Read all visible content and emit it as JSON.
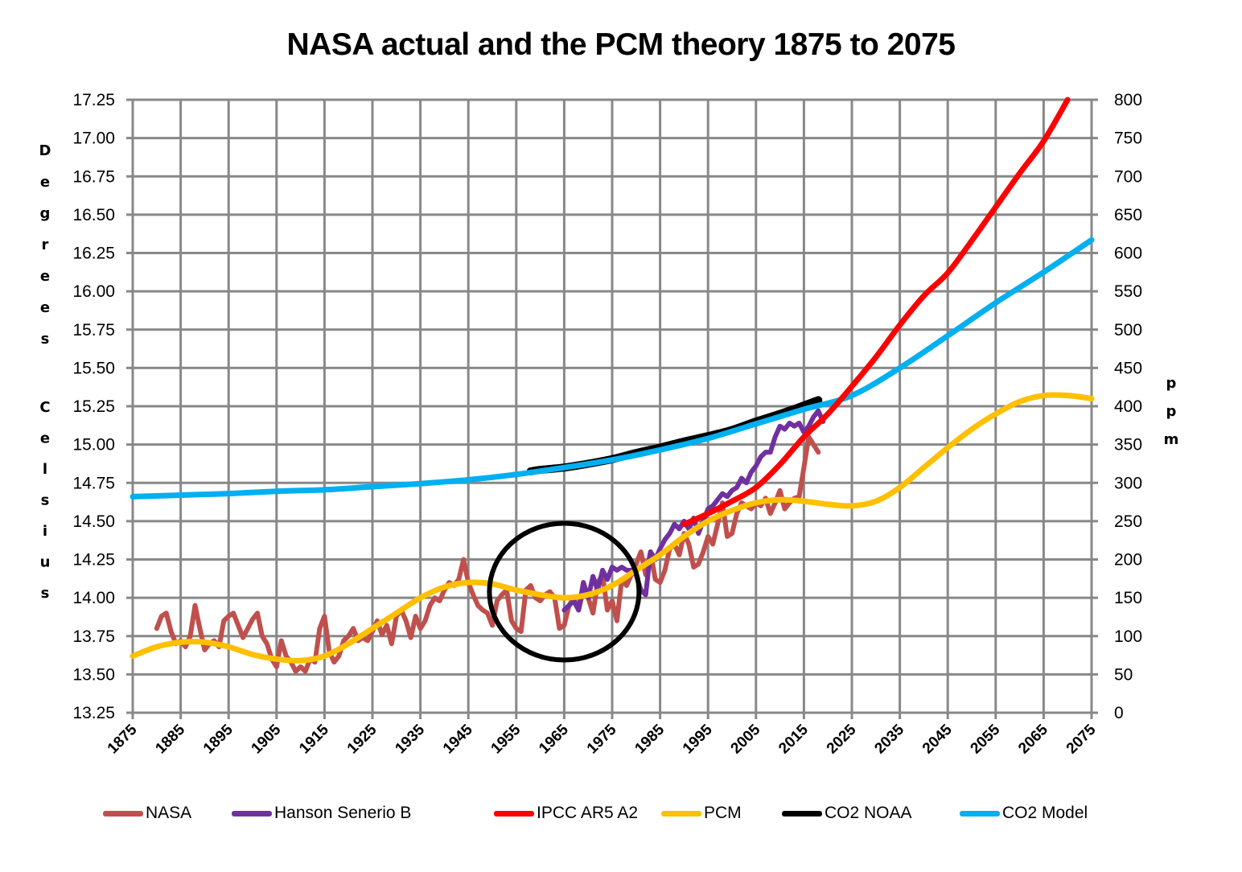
{
  "chart_data": {
    "type": "line",
    "title": "NASA actual and the PCM theory 1875 to 2075",
    "xlabel": "",
    "ylabel": "Degrees Celsius",
    "y2label": "ppm",
    "xlim": [
      1875,
      2075
    ],
    "ylim": [
      13.25,
      17.25
    ],
    "y2lim": [
      0,
      800
    ],
    "grid": true,
    "legend_position": "bottom",
    "x_ticks": [
      "1875",
      "1885",
      "1895",
      "1905",
      "1915",
      "1925",
      "1935",
      "1945",
      "1955",
      "1965",
      "1975",
      "1985",
      "1995",
      "2005",
      "2015",
      "2025",
      "2035",
      "2045",
      "2055",
      "2065",
      "2075"
    ],
    "y_ticks": [
      "13.25",
      "13.50",
      "13.75",
      "14.00",
      "14.25",
      "14.50",
      "14.75",
      "15.00",
      "15.25",
      "15.50",
      "15.75",
      "16.00",
      "16.25",
      "16.50",
      "16.75",
      "17.00",
      "17.25"
    ],
    "y2_ticks": [
      "0",
      "50",
      "100",
      "150",
      "200",
      "250",
      "300",
      "350",
      "400",
      "450",
      "500",
      "550",
      "600",
      "650",
      "700",
      "750",
      "800"
    ],
    "annotations": [
      {
        "type": "circle",
        "description": "highlight around 1965 dip",
        "center": [
          1965,
          14.04
        ],
        "radius_years": 8,
        "radius_deg": 0.46
      }
    ],
    "series": [
      {
        "name": "NASA",
        "axis": "left",
        "color": "#c0504d",
        "x": [
          1880,
          1881,
          1882,
          1883,
          1884,
          1885,
          1886,
          1887,
          1888,
          1889,
          1890,
          1891,
          1892,
          1893,
          1894,
          1895,
          1896,
          1897,
          1898,
          1899,
          1900,
          1901,
          1902,
          1903,
          1904,
          1905,
          1906,
          1907,
          1908,
          1909,
          1910,
          1911,
          1912,
          1913,
          1914,
          1915,
          1916,
          1917,
          1918,
          1919,
          1920,
          1921,
          1922,
          1923,
          1924,
          1925,
          1926,
          1927,
          1928,
          1929,
          1930,
          1931,
          1932,
          1933,
          1934,
          1935,
          1936,
          1937,
          1938,
          1939,
          1940,
          1941,
          1942,
          1943,
          1944,
          1945,
          1946,
          1947,
          1948,
          1949,
          1950,
          1951,
          1952,
          1953,
          1954,
          1955,
          1956,
          1957,
          1958,
          1959,
          1960,
          1961,
          1962,
          1963,
          1964,
          1965,
          1966,
          1967,
          1968,
          1969,
          1970,
          1971,
          1972,
          1973,
          1974,
          1975,
          1976,
          1977,
          1978,
          1979,
          1980,
          1981,
          1982,
          1983,
          1984,
          1985,
          1986,
          1987,
          1988,
          1989,
          1990,
          1991,
          1992,
          1993,
          1994,
          1995,
          1996,
          1997,
          1998,
          1999,
          2000,
          2001,
          2002,
          2003,
          2004,
          2005,
          2006,
          2007,
          2008,
          2009,
          2010,
          2011,
          2012,
          2013,
          2014,
          2015,
          2016,
          2017,
          2018
        ],
        "values": [
          13.8,
          13.88,
          13.9,
          13.78,
          13.7,
          13.72,
          13.68,
          13.75,
          13.95,
          13.8,
          13.66,
          13.7,
          13.72,
          13.68,
          13.85,
          13.88,
          13.9,
          13.82,
          13.74,
          13.8,
          13.86,
          13.9,
          13.75,
          13.7,
          13.6,
          13.55,
          13.72,
          13.62,
          13.58,
          13.52,
          13.55,
          13.52,
          13.6,
          13.58,
          13.8,
          13.88,
          13.65,
          13.58,
          13.62,
          13.72,
          13.75,
          13.8,
          13.72,
          13.74,
          13.72,
          13.78,
          13.85,
          13.76,
          13.82,
          13.7,
          13.88,
          13.92,
          13.85,
          13.74,
          13.88,
          13.8,
          13.85,
          13.95,
          14.0,
          13.98,
          14.05,
          14.1,
          14.08,
          14.12,
          14.25,
          14.1,
          14.02,
          13.95,
          13.92,
          13.9,
          13.82,
          13.98,
          14.02,
          14.05,
          13.85,
          13.8,
          13.78,
          14.05,
          14.08,
          14.0,
          13.98,
          14.02,
          14.04,
          14.0,
          13.8,
          13.82,
          13.95,
          14.0,
          13.92,
          14.05,
          14.0,
          13.9,
          14.1,
          14.15,
          13.92,
          13.98,
          13.85,
          14.12,
          14.08,
          14.15,
          14.22,
          14.3,
          14.15,
          14.3,
          14.12,
          14.1,
          14.18,
          14.32,
          14.35,
          14.28,
          14.42,
          14.35,
          14.2,
          14.22,
          14.3,
          14.4,
          14.35,
          14.48,
          14.62,
          14.4,
          14.42,
          14.55,
          14.62,
          14.6,
          14.58,
          14.62,
          14.6,
          14.65,
          14.55,
          14.62,
          14.7,
          14.58,
          14.62,
          14.65,
          14.66,
          14.85,
          15.05,
          15.0,
          14.95
        ]
      },
      {
        "name": "Hanson Senerio B",
        "axis": "left",
        "color": "#7030a0",
        "x": [
          1965,
          1966,
          1967,
          1968,
          1969,
          1970,
          1971,
          1972,
          1973,
          1974,
          1975,
          1976,
          1977,
          1978,
          1979,
          1980,
          1981,
          1982,
          1983,
          1984,
          1985,
          1986,
          1987,
          1988,
          1989,
          1990,
          1991,
          1992,
          1993,
          1994,
          1995,
          1996,
          1997,
          1998,
          1999,
          2000,
          2001,
          2002,
          2003,
          2004,
          2005,
          2006,
          2007,
          2008,
          2009,
          2010,
          2011,
          2012,
          2013,
          2014,
          2015,
          2016,
          2017,
          2018,
          2019
        ],
        "values": [
          13.92,
          13.95,
          13.98,
          13.92,
          14.1,
          14.0,
          14.14,
          14.05,
          14.18,
          14.12,
          14.2,
          14.18,
          14.2,
          14.18,
          14.18,
          14.15,
          14.05,
          14.02,
          14.3,
          14.25,
          14.32,
          14.38,
          14.42,
          14.48,
          14.45,
          14.5,
          14.45,
          14.52,
          14.42,
          14.5,
          14.58,
          14.6,
          14.64,
          14.68,
          14.66,
          14.7,
          14.72,
          14.78,
          14.75,
          14.82,
          14.86,
          14.92,
          14.95,
          14.95,
          15.05,
          15.12,
          15.1,
          15.14,
          15.12,
          15.14,
          15.08,
          15.12,
          15.18,
          15.22,
          15.15
        ]
      },
      {
        "name": "IPCC AR5 A2",
        "axis": "left",
        "color": "#ff0000",
        "x": [
          1990,
          1995,
          2000,
          2005,
          2010,
          2015,
          2020,
          2025,
          2030,
          2035,
          2040,
          2045,
          2050,
          2055,
          2060,
          2065,
          2070
        ],
        "values": [
          14.48,
          14.55,
          14.63,
          14.72,
          14.87,
          15.05,
          15.2,
          15.38,
          15.57,
          15.78,
          15.97,
          16.12,
          16.33,
          16.55,
          16.77,
          16.98,
          17.25
        ]
      },
      {
        "name": "PCM",
        "axis": "left",
        "color": "#ffc000",
        "x": [
          1875,
          1880,
          1885,
          1890,
          1895,
          1900,
          1905,
          1910,
          1915,
          1920,
          1925,
          1930,
          1935,
          1940,
          1945,
          1950,
          1955,
          1960,
          1965,
          1970,
          1975,
          1980,
          1985,
          1990,
          1995,
          2000,
          2005,
          2010,
          2015,
          2020,
          2025,
          2030,
          2035,
          2040,
          2045,
          2050,
          2055,
          2060,
          2065,
          2070,
          2075
        ],
        "values": [
          13.62,
          13.68,
          13.71,
          13.71,
          13.68,
          13.63,
          13.6,
          13.59,
          13.62,
          13.7,
          13.8,
          13.9,
          14.0,
          14.07,
          14.1,
          14.09,
          14.05,
          14.02,
          14.0,
          14.02,
          14.08,
          14.18,
          14.28,
          14.4,
          14.5,
          14.57,
          14.62,
          14.64,
          14.63,
          14.61,
          14.6,
          14.63,
          14.72,
          14.85,
          14.98,
          15.1,
          15.2,
          15.28,
          15.32,
          15.32,
          15.3
        ]
      },
      {
        "name": "CO2 NOAA",
        "axis": "right",
        "color": "#000000",
        "x": [
          1958,
          1960,
          1965,
          1970,
          1975,
          1980,
          1985,
          1990,
          1995,
          2000,
          2005,
          2010,
          2015,
          2018
        ],
        "values": [
          315,
          317,
          320,
          325,
          331,
          339,
          346,
          354,
          361,
          369,
          380,
          390,
          401,
          408
        ]
      },
      {
        "name": "CO2 Model",
        "axis": "right",
        "color": "#00b0f0",
        "x": [
          1875,
          1885,
          1895,
          1905,
          1915,
          1925,
          1935,
          1945,
          1955,
          1965,
          1975,
          1985,
          1995,
          2005,
          2015,
          2025,
          2035,
          2045,
          2055,
          2065,
          2075
        ],
        "values": [
          282,
          284,
          286,
          289,
          291,
          295,
          299,
          304,
          311,
          320,
          330,
          343,
          358,
          377,
          396,
          414,
          450,
          492,
          535,
          575,
          617
        ]
      }
    ]
  },
  "axes": {
    "left_label_letters": [
      "D",
      "e",
      "g",
      "r",
      "e",
      "e",
      "s",
      "",
      "C",
      "e",
      "l",
      "s",
      "i",
      "u",
      "s"
    ],
    "right_label_letters": [
      "p",
      "p",
      "m"
    ]
  },
  "legend": {
    "items": [
      {
        "label": "NASA",
        "color": "#c0504d"
      },
      {
        "label": "Hanson Senerio B",
        "color": "#7030a0"
      },
      {
        "label": "IPCC AR5 A2",
        "color": "#ff0000"
      },
      {
        "label": "PCM",
        "color": "#ffc000"
      },
      {
        "label": "CO2 NOAA",
        "color": "#000000"
      },
      {
        "label": "CO2 Model",
        "color": "#00b0f0"
      }
    ]
  },
  "colors": {
    "grid": "#888888",
    "annotation_circle": "#000000"
  }
}
